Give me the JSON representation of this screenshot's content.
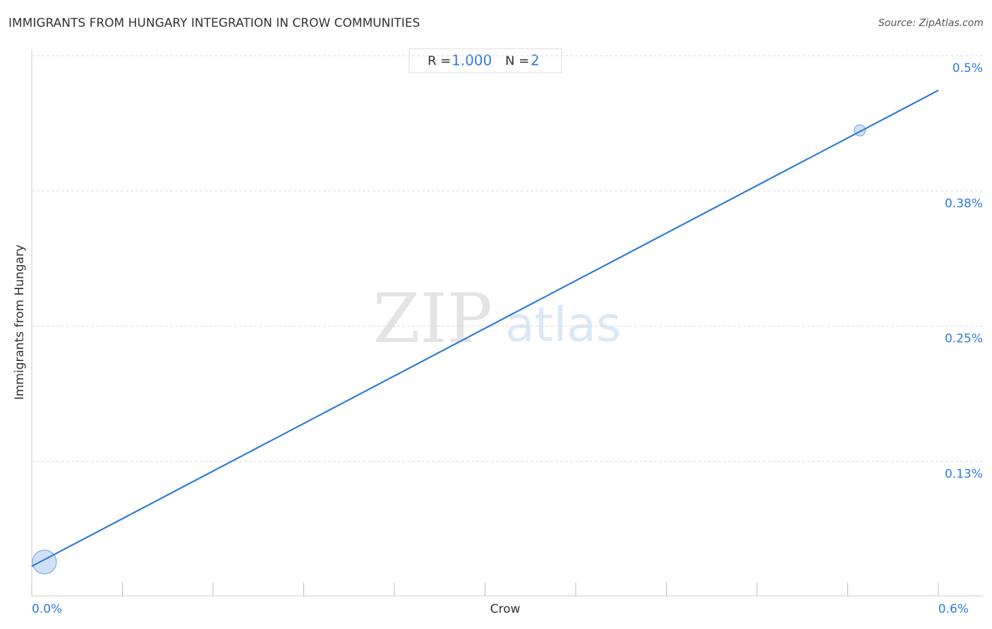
{
  "chart_data": {
    "type": "scatter",
    "title": "IMMIGRANTS FROM HUNGARY INTEGRATION IN CROW COMMUNITIES",
    "source": "Source: ZipAtlas.com",
    "x_label": "Crow",
    "y_label": "Immigrants from Hungary",
    "watermark": {
      "zip": "ZIP",
      "atlas": "atlas"
    },
    "stats": {
      "r_label": "R = ",
      "r": "1.000",
      "n_label": "N = ",
      "n": 2
    },
    "series": [
      {
        "name": "Crow",
        "color": "#a9c8f0",
        "x": [
          0.0084,
          0.548
        ],
        "values": [
          0.032,
          0.431
        ],
        "sizes": [
          4.5,
          1
        ]
      }
    ],
    "trendline": {
      "color": "#2f7bd6",
      "x": [
        0,
        0.6
      ],
      "y": [
        0.028,
        0.468
      ]
    },
    "xlim": [
      0,
      0.6
    ],
    "ylim": [
      0,
      0.5
    ],
    "xticks": [
      {
        "value": 0,
        "label": "0.0%"
      },
      {
        "value": 0.06,
        "label": null
      },
      {
        "value": 0.12,
        "label": null
      },
      {
        "value": 0.18,
        "label": null
      },
      {
        "value": 0.24,
        "label": null
      },
      {
        "value": 0.3,
        "label": null
      },
      {
        "value": 0.36,
        "label": null
      },
      {
        "value": 0.42,
        "label": null
      },
      {
        "value": 0.48,
        "label": null
      },
      {
        "value": 0.54,
        "label": null
      },
      {
        "value": 0.6,
        "label": "0.6%"
      }
    ],
    "yticks": [
      {
        "value": 0.125,
        "label": "0.13%"
      },
      {
        "value": 0.25,
        "label": "0.25%"
      },
      {
        "value": 0.375,
        "label": "0.38%"
      },
      {
        "value": 0.5,
        "label": "0.5%"
      }
    ],
    "grid": true
  }
}
